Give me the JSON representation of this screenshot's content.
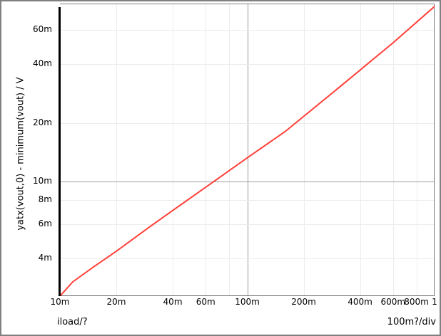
{
  "colors": {
    "background": "#ffffff",
    "window_border": "#808080",
    "plot_frame": "#7d7d7d",
    "plot_bottom_line": "#666666",
    "axis_bar": "#000000",
    "grid_light": "#ececec",
    "grid_dark": "#999999",
    "trace": "#ff4038",
    "text": "#000000"
  },
  "labels": {
    "y_axis_title": "yatx(vout,0) - minimum(vout) / V",
    "x_axis_name": "iload/?",
    "x_axis_scale": "100m?/div"
  },
  "chart_data": {
    "type": "line",
    "title": "",
    "xlabel": "iload/?",
    "ylabel": "yatx(vout,0) - minimum(vout) / V",
    "x_scale": "log",
    "y_scale": "log",
    "xlim": [
      0.01,
      1.0
    ],
    "ylim": [
      0.00256,
      0.0823
    ],
    "grid": "on",
    "legend": "none",
    "x_ticks": [
      {
        "value": 0.01,
        "label": "10m",
        "grid": "none"
      },
      {
        "value": 0.02,
        "label": "20m",
        "grid": "light"
      },
      {
        "value": 0.04,
        "label": "40m",
        "grid": "light"
      },
      {
        "value": 0.06,
        "label": "60m",
        "grid": "light"
      },
      {
        "value": 0.08,
        "label": "",
        "grid": "light"
      },
      {
        "value": 0.1,
        "label": "100m",
        "grid": "dark"
      },
      {
        "value": 0.2,
        "label": "200m",
        "grid": "light"
      },
      {
        "value": 0.4,
        "label": "400m",
        "grid": "light"
      },
      {
        "value": 0.6,
        "label": "600m",
        "grid": "light"
      },
      {
        "value": 0.8,
        "label": "800m",
        "grid": "light"
      },
      {
        "value": 1.0,
        "label": "1",
        "grid": "none"
      }
    ],
    "y_ticks": [
      {
        "value": 0.004,
        "label": "4m",
        "grid": "light"
      },
      {
        "value": 0.006,
        "label": "6m",
        "grid": "light"
      },
      {
        "value": 0.008,
        "label": "8m",
        "grid": "light"
      },
      {
        "value": 0.01,
        "label": "10m",
        "grid": "dark"
      },
      {
        "value": 0.02,
        "label": "20m",
        "grid": "light"
      },
      {
        "value": 0.04,
        "label": "40m",
        "grid": "light"
      },
      {
        "value": 0.06,
        "label": "60m",
        "grid": "light"
      }
    ],
    "series": [
      {
        "name": "vout",
        "color": "#ff4038",
        "points": [
          [
            0.01,
            0.00256
          ],
          [
            0.0117,
            0.00303
          ],
          [
            0.015,
            0.0036
          ],
          [
            0.02,
            0.00436
          ],
          [
            0.03,
            0.0058
          ],
          [
            0.04,
            0.00707
          ],
          [
            0.0666,
            0.01
          ],
          [
            0.1,
            0.0132
          ],
          [
            0.16,
            0.0181
          ],
          [
            0.3,
            0.0297
          ],
          [
            0.6,
            0.0517
          ],
          [
            1.0,
            0.0796
          ]
        ]
      }
    ]
  }
}
